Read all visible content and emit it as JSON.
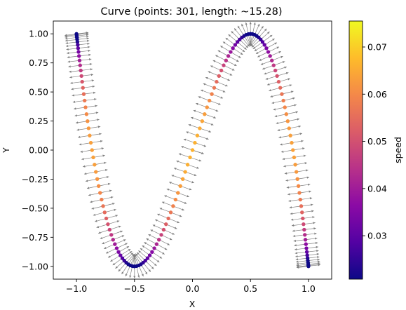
{
  "chart_data": {
    "type": "scatter",
    "title": "Curve (points: 301, length: ~15.28)",
    "xlabel": "X",
    "ylabel": "Y",
    "xlim": [
      -1.2,
      1.2
    ],
    "ylim": [
      -1.11,
      1.11
    ],
    "x_ticks": [
      -1.0,
      -0.5,
      0.0,
      0.5,
      1.0
    ],
    "x_tick_labels": [
      "−1.0",
      "−0.5",
      "0.0",
      "0.5",
      "1.0"
    ],
    "y_ticks": [
      -1.0,
      -0.75,
      -0.5,
      -0.25,
      0.0,
      0.25,
      0.5,
      0.75,
      1.0
    ],
    "y_tick_labels": [
      "−1.00",
      "−0.75",
      "−0.50",
      "−0.25",
      "0.00",
      "0.25",
      "0.50",
      "0.75",
      "1.00"
    ],
    "grid": false,
    "curve": {
      "x": "sin(t)",
      "y": "sin(3t)",
      "t_range": "0 to 2π",
      "num_points": 301,
      "approx_length": 15.28
    },
    "series": [
      {
        "values_by": "speed",
        "marker": "dot",
        "has_normal_vectors": true
      }
    ],
    "colorbar": {
      "label": "speed",
      "colormap": "plasma",
      "range": [
        0.0208,
        0.0755
      ],
      "ticks": [
        0.03,
        0.04,
        0.05,
        0.06,
        0.07
      ],
      "tick_labels": [
        "0.03",
        "0.04",
        "0.05",
        "0.06",
        "0.07"
      ]
    },
    "colors": {
      "normal_vectors": "#808080",
      "axes": "#000000"
    }
  }
}
